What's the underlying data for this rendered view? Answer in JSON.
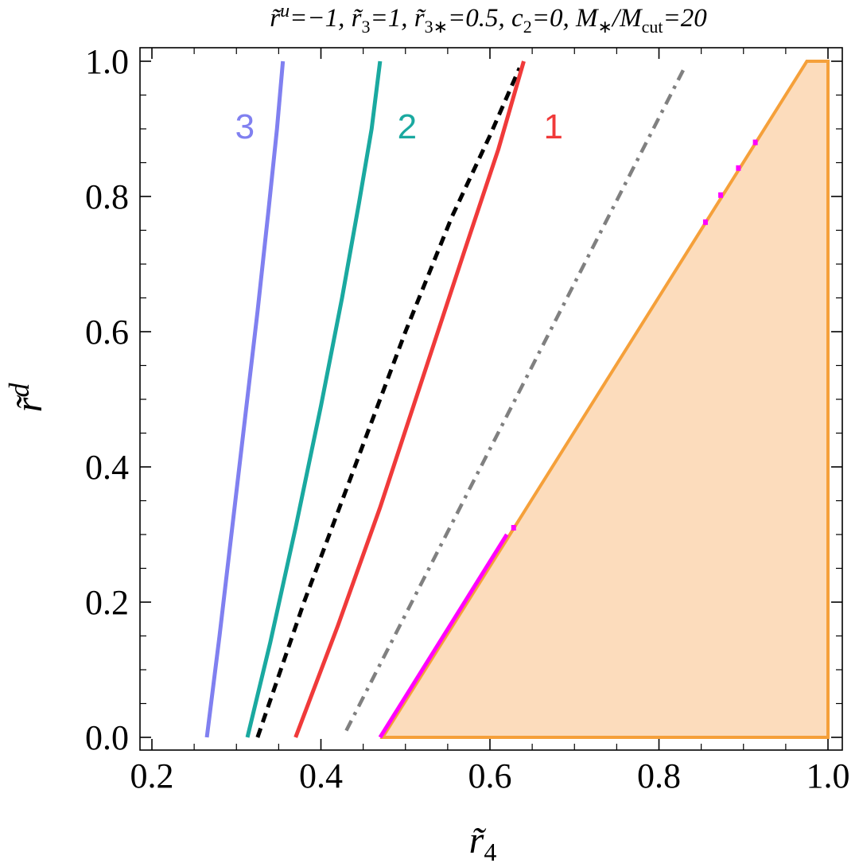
{
  "chart_data": {
    "type": "line",
    "title": "r̃ᵘ=−1, r̃₃=1, r̃₃∗=0.5, c₂=0, M∗/Mcut=20",
    "xlabel": "r̃₄",
    "ylabel": "r̃ᵈ",
    "xlim": [
      0.2,
      1.0
    ],
    "ylim": [
      0.0,
      1.0
    ],
    "xticks": [
      "0.2",
      "0.4",
      "0.6",
      "0.8",
      "1.0"
    ],
    "yticks": [
      "0.0",
      "0.2",
      "0.4",
      "0.6",
      "0.8",
      "1.0"
    ],
    "grid": false,
    "colors": {
      "curve3": "#8080f0",
      "curve2": "#1aa9a0",
      "curve1": "#f03a3a",
      "dashed": "#000000",
      "dashdot": "#808080",
      "region_fill": "#fcdcbc",
      "region_edge": "#f5a03a",
      "magenta": "#ff00ff"
    },
    "series": [
      {
        "name": "3",
        "label_at": [
          0.31,
          0.905
        ],
        "color": "#8080f0",
        "style": "solid",
        "x": [
          0.265,
          0.28,
          0.295,
          0.31,
          0.325,
          0.338,
          0.348,
          0.355
        ],
        "y": [
          0.0,
          0.15,
          0.31,
          0.47,
          0.63,
          0.78,
          0.9,
          1.0
        ]
      },
      {
        "name": "2",
        "label_at": [
          0.502,
          0.905
        ],
        "color": "#1aa9a0",
        "style": "solid",
        "x": [
          0.313,
          0.34,
          0.37,
          0.4,
          0.425,
          0.445,
          0.46,
          0.47
        ],
        "y": [
          0.0,
          0.14,
          0.31,
          0.49,
          0.65,
          0.79,
          0.9,
          1.0
        ]
      },
      {
        "name": "",
        "color": "#000000",
        "style": "dashed",
        "x": [
          0.325,
          0.38,
          0.44,
          0.5,
          0.555,
          0.6,
          0.635
        ],
        "y": [
          0.0,
          0.2,
          0.4,
          0.6,
          0.77,
          0.89,
          0.99
        ]
      },
      {
        "name": "1",
        "label_at": [
          0.675,
          0.905
        ],
        "color": "#f03a3a",
        "style": "solid",
        "x": [
          0.37,
          0.42,
          0.47,
          0.52,
          0.57,
          0.61,
          0.64
        ],
        "y": [
          0.0,
          0.165,
          0.34,
          0.53,
          0.72,
          0.87,
          1.0
        ]
      },
      {
        "name": "",
        "color": "#808080",
        "style": "dashdot",
        "x": [
          0.43,
          0.83
        ],
        "y": [
          0.01,
          0.99
        ]
      },
      {
        "name": "",
        "color": "#ff00ff",
        "style": "solid",
        "x": [
          0.47,
          0.62
        ],
        "y": [
          0.0,
          0.3
        ]
      }
    ],
    "region": {
      "type": "area",
      "x": [
        0.473,
        0.975,
        1.0,
        1.0,
        0.473
      ],
      "y": [
        0.0,
        1.0,
        1.0,
        0.0,
        0.0
      ]
    },
    "markers": [
      {
        "x": 0.628,
        "y": 0.31
      },
      {
        "x": 0.855,
        "y": 0.762
      },
      {
        "x": 0.873,
        "y": 0.802
      },
      {
        "x": 0.894,
        "y": 0.842
      },
      {
        "x": 0.914,
        "y": 0.88
      }
    ]
  }
}
